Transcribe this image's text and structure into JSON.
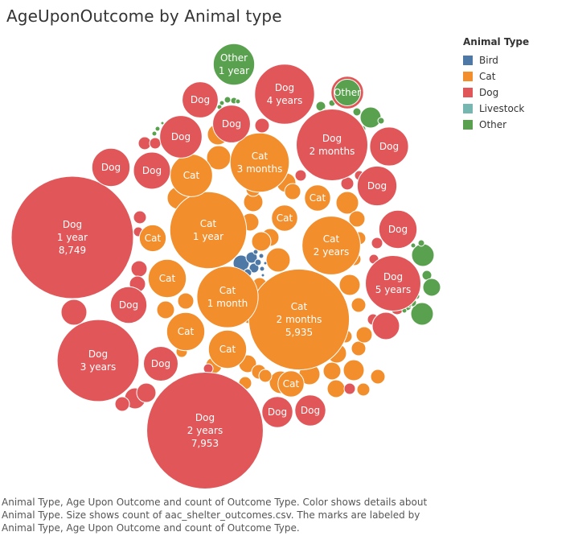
{
  "title": "AgeUponOutcome by Animal type",
  "legend": {
    "title": "Animal Type",
    "items": [
      {
        "label": "Bird",
        "color": "#4e79a7"
      },
      {
        "label": "Cat",
        "color": "#f28e2b"
      },
      {
        "label": "Dog",
        "color": "#e15759"
      },
      {
        "label": "Livestock",
        "color": "#76b7b2"
      },
      {
        "label": "Other",
        "color": "#59a14f"
      }
    ]
  },
  "caption": "Animal Type, Age Upon Outcome and count of Outcome Type.  Color shows details about Animal Type.  Size shows count of aac_shelter_outcomes.csv.  The marks are labeled by Animal Type, Age Upon Outcome and count of Outcome Type.",
  "chart_data": {
    "type": "packed-bubble",
    "value_field": "count of Outcome Type",
    "bubbles": [
      {
        "animal": "Dog",
        "age": "1 year",
        "count": 8749,
        "labels": [
          "Dog",
          "1 year",
          "8,749"
        ]
      },
      {
        "animal": "Dog",
        "age": "2 years",
        "count": 7953,
        "labels": [
          "Dog",
          "2 years",
          "7,953"
        ]
      },
      {
        "animal": "Cat",
        "age": "2 months",
        "count": 5935,
        "labels": [
          "Cat",
          "2 months",
          "5,935"
        ]
      },
      {
        "animal": "Dog",
        "age": "3 years",
        "count": 3930,
        "labels": [
          "Dog",
          "3 years"
        ]
      },
      {
        "animal": "Cat",
        "age": "1 year",
        "count": 3450,
        "labels": [
          "Cat",
          "1 year"
        ]
      },
      {
        "animal": "Dog",
        "age": "2 months",
        "count": 3000,
        "labels": [
          "Dog",
          "2 months"
        ]
      },
      {
        "animal": "Cat",
        "age": "1 month",
        "count": 2200,
        "labels": [
          "Cat",
          "1 month"
        ]
      },
      {
        "animal": "Dog",
        "age": "4 years",
        "count": 2100,
        "labels": [
          "Dog",
          "4 years"
        ]
      },
      {
        "animal": "Cat",
        "age": "3 months",
        "count": 2050,
        "labels": [
          "Cat",
          "3 months"
        ]
      },
      {
        "animal": "Cat",
        "age": "2 years",
        "count": 2000,
        "labels": [
          "Cat",
          "2 years"
        ]
      },
      {
        "animal": "Dog",
        "age": "5 years",
        "count": 1800,
        "labels": [
          "Dog",
          "5 years"
        ]
      },
      {
        "animal": "Other",
        "age": "1 year",
        "count": 1000,
        "labels": [
          "Other",
          "1 year"
        ]
      },
      {
        "animal": "Cat",
        "age": "",
        "count": 1050,
        "labels": [
          "Cat"
        ]
      },
      {
        "animal": "Cat",
        "age": "",
        "count": 850,
        "labels": [
          "Cat"
        ]
      },
      {
        "animal": "Cat",
        "age": "",
        "count": 850,
        "labels": [
          "Cat"
        ]
      },
      {
        "animal": "Cat",
        "age": "",
        "count": 850,
        "labels": [
          "Cat"
        ]
      },
      {
        "animal": "Dog",
        "age": "",
        "count": 1050,
        "labels": [
          "Dog"
        ]
      },
      {
        "animal": "Dog",
        "age": "",
        "count": 920,
        "labels": [
          "Dog"
        ]
      },
      {
        "animal": "Dog",
        "age": "",
        "count": 880,
        "labels": [
          "Dog"
        ]
      },
      {
        "animal": "Dog",
        "age": "",
        "count": 850,
        "labels": [
          "Dog"
        ]
      },
      {
        "animal": "Dog",
        "age": "",
        "count": 850,
        "labels": [
          "Dog"
        ]
      },
      {
        "animal": "Dog",
        "age": "",
        "count": 830,
        "labels": [
          "Dog"
        ]
      },
      {
        "animal": "Dog",
        "age": "",
        "count": 800,
        "labels": [
          "Dog"
        ]
      },
      {
        "animal": "Dog",
        "age": "",
        "count": 780,
        "labels": [
          "Dog"
        ]
      },
      {
        "animal": "Dog",
        "age": "",
        "count": 760,
        "labels": [
          "Dog"
        ]
      },
      {
        "animal": "Dog",
        "age": "",
        "count": 700,
        "labels": [
          "Dog"
        ]
      },
      {
        "animal": "Dog",
        "age": "",
        "count": 620,
        "labels": [
          "Dog"
        ]
      },
      {
        "animal": "Dog",
        "age": "",
        "count": 560,
        "labels": [
          "Dog"
        ]
      },
      {
        "animal": "Dog",
        "age": "",
        "count": 560,
        "labels": [
          "Dog"
        ]
      },
      {
        "animal": "Cat",
        "age": "",
        "count": 420,
        "labels": [
          "Cat"
        ]
      },
      {
        "animal": "Cat",
        "age": "",
        "count": 400,
        "labels": [
          "Cat"
        ]
      },
      {
        "animal": "Cat",
        "age": "",
        "count": 400,
        "labels": [
          "Cat"
        ]
      },
      {
        "animal": "Cat",
        "age": "",
        "count": 400,
        "labels": [
          "Cat"
        ]
      },
      {
        "animal": "Other",
        "age": "",
        "count": 410,
        "labels": [
          "Other"
        ]
      }
    ]
  }
}
